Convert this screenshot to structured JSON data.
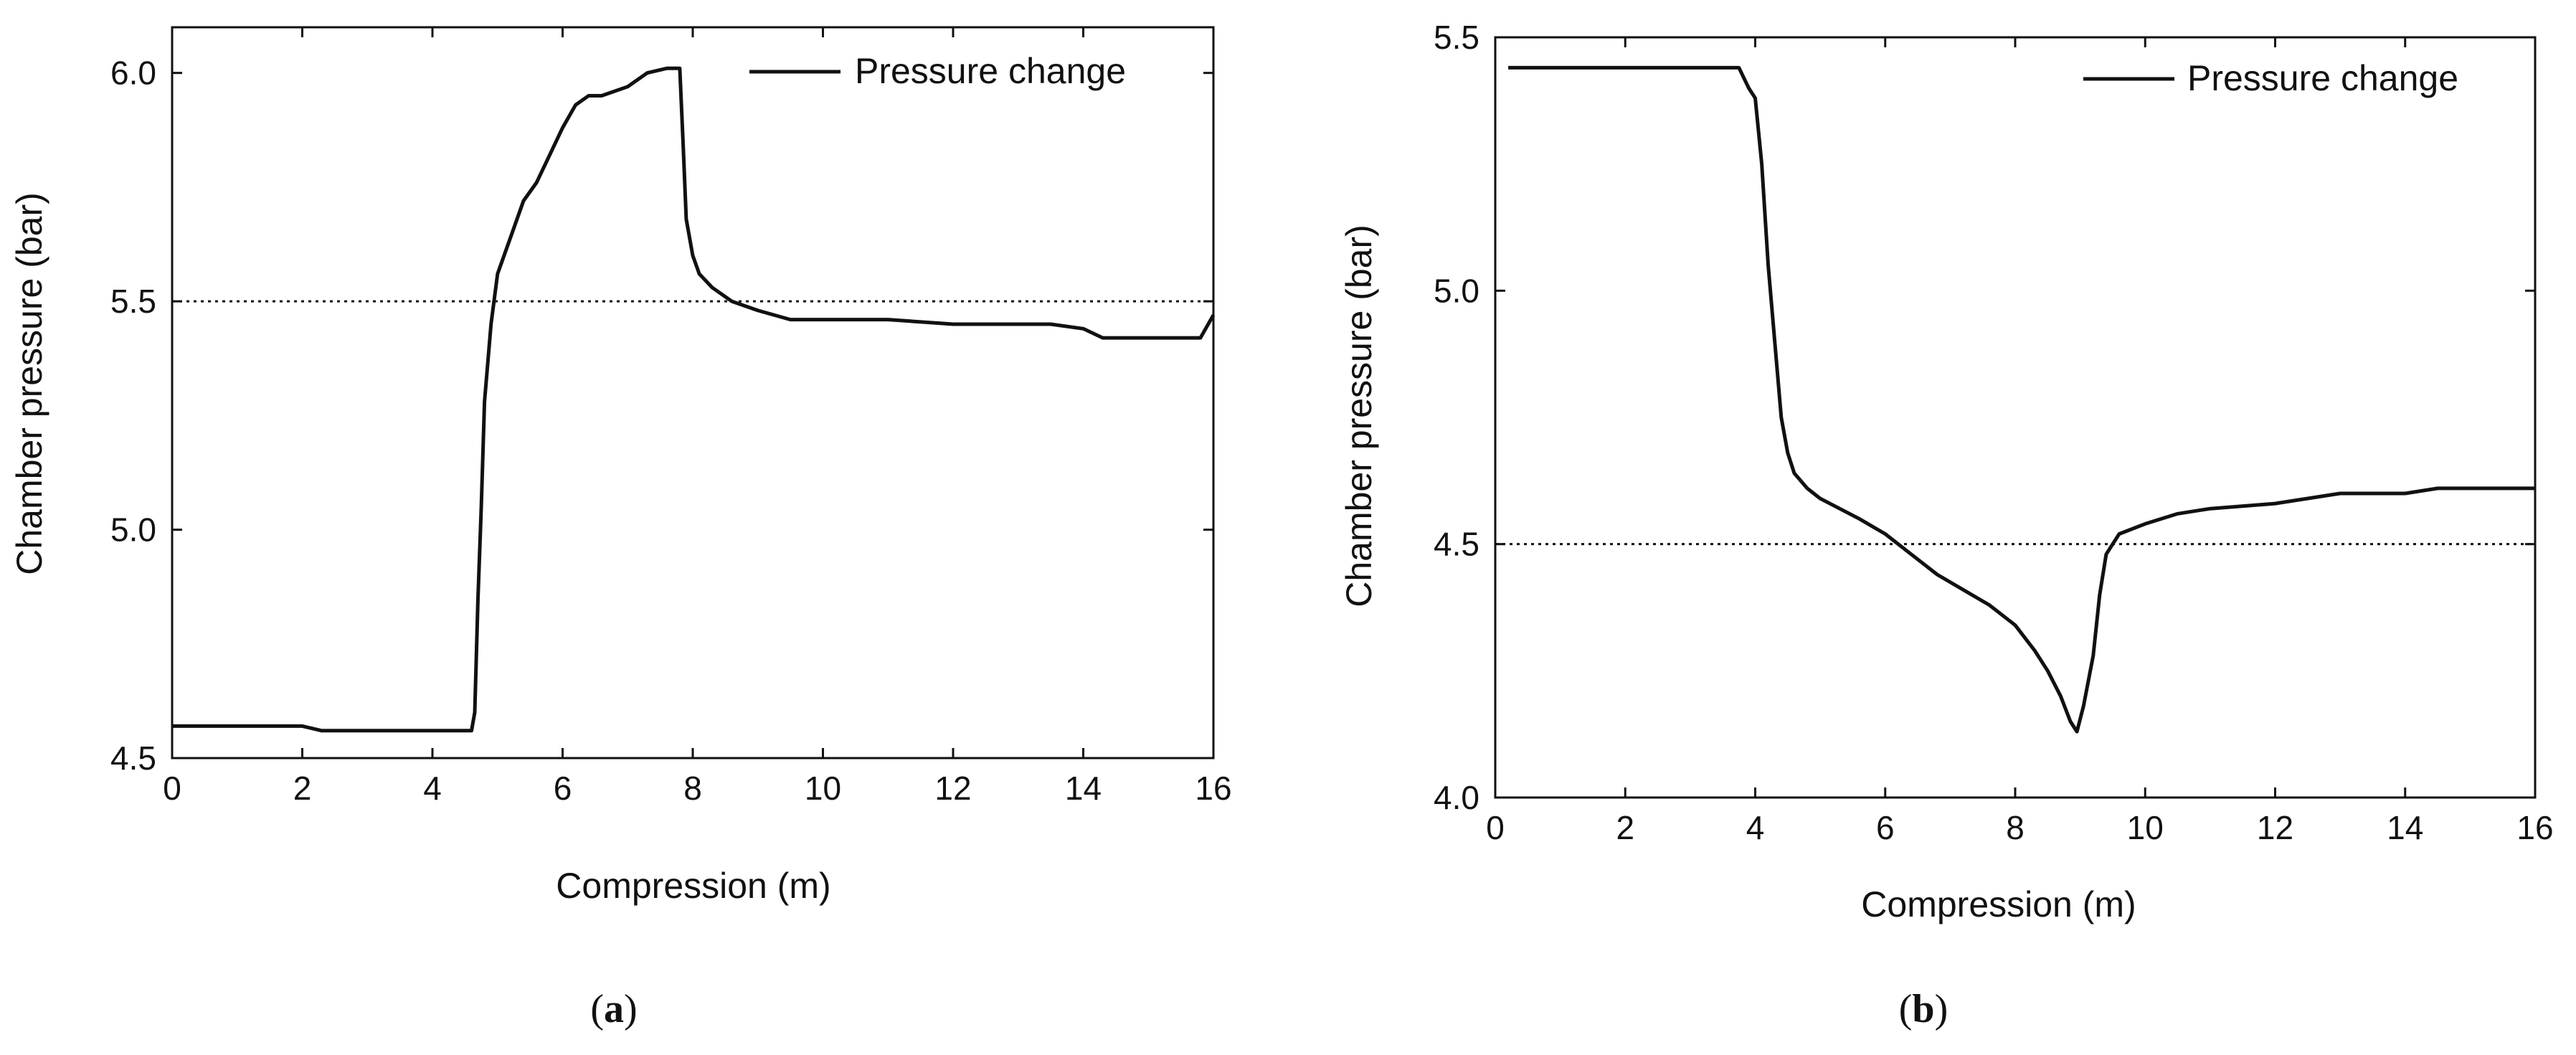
{
  "chart_data": [
    {
      "panel_label": "a",
      "type": "line",
      "xlabel": "Compression (m)",
      "ylabel": "Chamber pressure (bar)",
      "xlim": [
        0,
        16
      ],
      "ylim": [
        4.5,
        6.1
      ],
      "xticks": [
        0,
        2,
        4,
        6,
        8,
        10,
        12,
        14,
        16
      ],
      "yticks": [
        4.5,
        5.0,
        5.5,
        6.0
      ],
      "xtick_labels": [
        "0",
        "2",
        "4",
        "6",
        "8",
        "10",
        "12",
        "14",
        "16"
      ],
      "ytick_labels": [
        "4.5",
        "5.0",
        "5.5",
        "6.0"
      ],
      "reference_line": {
        "y": 5.5,
        "style": "dotted"
      },
      "legend": {
        "entries": [
          "Pressure change"
        ],
        "position": "top-right"
      },
      "series": [
        {
          "name": "Pressure change",
          "x": [
            0,
            0.5,
            1.0,
            1.5,
            2.0,
            2.3,
            3.0,
            4.0,
            4.5,
            4.6,
            4.65,
            4.7,
            4.75,
            4.8,
            4.9,
            5.0,
            5.2,
            5.4,
            5.6,
            5.8,
            6.0,
            6.2,
            6.4,
            6.6,
            7.0,
            7.3,
            7.6,
            7.8,
            7.85,
            7.9,
            8.0,
            8.1,
            8.3,
            8.6,
            9.0,
            9.5,
            10.0,
            11.0,
            12.0,
            12.5,
            13.0,
            13.5,
            14.0,
            14.3,
            15.0,
            15.5,
            15.8,
            16.0
          ],
          "y": [
            4.57,
            4.57,
            4.57,
            4.57,
            4.57,
            4.56,
            4.56,
            4.56,
            4.56,
            4.56,
            4.6,
            4.85,
            5.05,
            5.28,
            5.45,
            5.56,
            5.64,
            5.72,
            5.76,
            5.82,
            5.88,
            5.93,
            5.95,
            5.95,
            5.97,
            6.0,
            6.01,
            6.01,
            5.85,
            5.68,
            5.6,
            5.56,
            5.53,
            5.5,
            5.48,
            5.46,
            5.46,
            5.46,
            5.45,
            5.45,
            5.45,
            5.45,
            5.44,
            5.42,
            5.42,
            5.42,
            5.42,
            5.47
          ]
        }
      ]
    },
    {
      "panel_label": "b",
      "type": "line",
      "xlabel": "Compression (m)",
      "ylabel": "Chamber pressure (bar)",
      "xlim": [
        0,
        16
      ],
      "ylim": [
        4.0,
        5.5
      ],
      "xticks": [
        0,
        2,
        4,
        6,
        8,
        10,
        12,
        14,
        16
      ],
      "yticks": [
        4.0,
        4.5,
        5.0,
        5.5
      ],
      "xtick_labels": [
        "0",
        "2",
        "4",
        "6",
        "8",
        "10",
        "12",
        "14",
        "16"
      ],
      "ytick_labels": [
        "4.0",
        "4.5",
        "5.0",
        "5.5"
      ],
      "reference_line": {
        "y": 4.5,
        "style": "dotted"
      },
      "legend": {
        "entries": [
          "Pressure change"
        ],
        "position": "top-right"
      },
      "series": [
        {
          "name": "Pressure change",
          "x": [
            0.2,
            1.0,
            2.0,
            3.0,
            3.5,
            3.75,
            3.9,
            4.0,
            4.1,
            4.2,
            4.3,
            4.4,
            4.5,
            4.6,
            4.8,
            5.0,
            5.3,
            5.6,
            6.0,
            6.4,
            6.8,
            7.2,
            7.6,
            8.0,
            8.3,
            8.5,
            8.7,
            8.85,
            8.95,
            9.05,
            9.2,
            9.3,
            9.4,
            9.6,
            10.0,
            10.5,
            11.0,
            12.0,
            13.0,
            14.0,
            14.5,
            15.0,
            16.0
          ],
          "y": [
            5.44,
            5.44,
            5.44,
            5.44,
            5.44,
            5.44,
            5.4,
            5.38,
            5.25,
            5.05,
            4.9,
            4.75,
            4.68,
            4.64,
            4.61,
            4.59,
            4.57,
            4.55,
            4.52,
            4.48,
            4.44,
            4.41,
            4.38,
            4.34,
            4.29,
            4.25,
            4.2,
            4.15,
            4.13,
            4.18,
            4.28,
            4.4,
            4.48,
            4.52,
            4.54,
            4.56,
            4.57,
            4.58,
            4.6,
            4.6,
            4.61,
            4.61,
            4.61
          ]
        }
      ]
    }
  ],
  "captions": {
    "a": "(a)",
    "b": "(b)"
  }
}
